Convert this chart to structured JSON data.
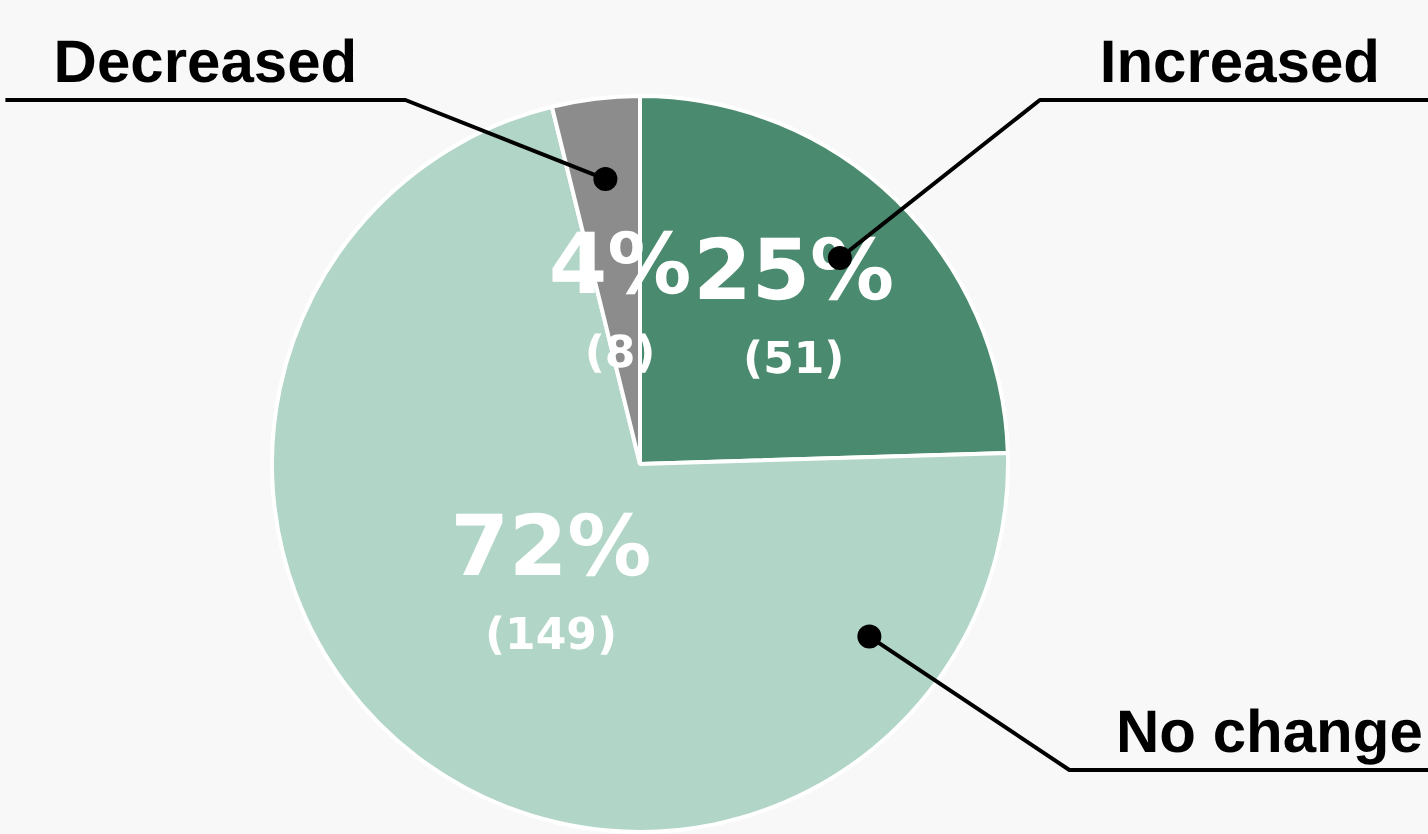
{
  "chart_data": {
    "type": "pie",
    "categories": [
      "Increased",
      "No change",
      "Decreased"
    ],
    "values": [
      51,
      149,
      8
    ],
    "colors": [
      "#4a8a6e",
      "#b1d5c6",
      "#8c8c8c"
    ],
    "value_labels": [
      "25% (51)",
      "72% (149)",
      "4% (8)"
    ],
    "legend": false
  }
}
